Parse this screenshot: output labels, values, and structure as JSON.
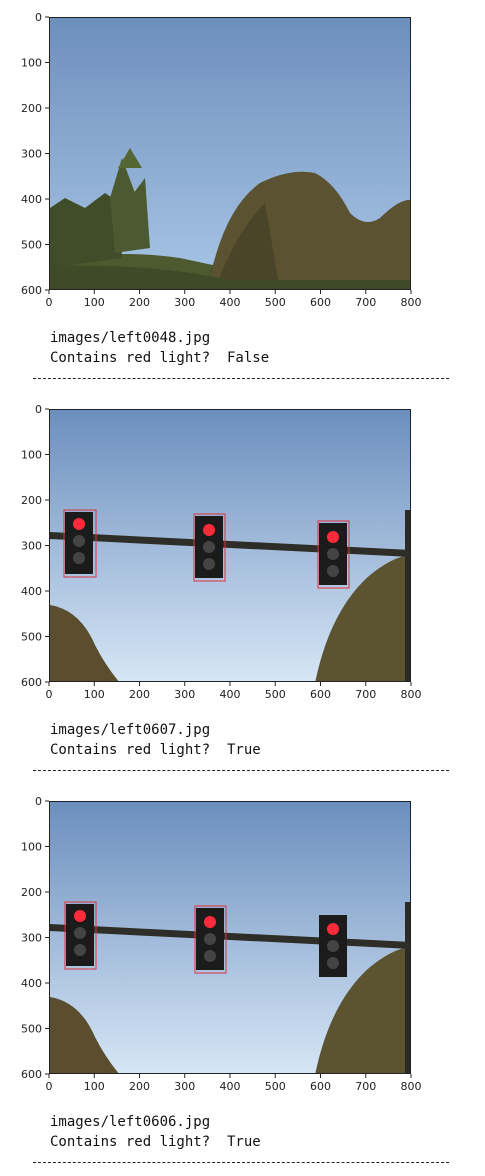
{
  "xticks": [
    "0",
    "100",
    "200",
    "300",
    "400",
    "500",
    "600",
    "700",
    "800"
  ],
  "yticks": [
    "0",
    "100",
    "200",
    "300",
    "400",
    "500",
    "600"
  ],
  "colors": {
    "sky_top": "#6b8fbe",
    "sky_bottom": "#a9c4e6",
    "hill": "#5a5230",
    "box": "#e0303a",
    "light_red": "#ff2a3a",
    "pole": "#2b2a25"
  },
  "outputs": [
    {
      "path": "images/left0048.jpg",
      "result": "Contains red light?  False"
    },
    {
      "path": "images/left0607.jpg",
      "result": "Contains red light?  True"
    },
    {
      "path": "images/left0606.jpg",
      "result": "Contains red light?  True"
    }
  ],
  "separator": "-------------------------------------------"
}
